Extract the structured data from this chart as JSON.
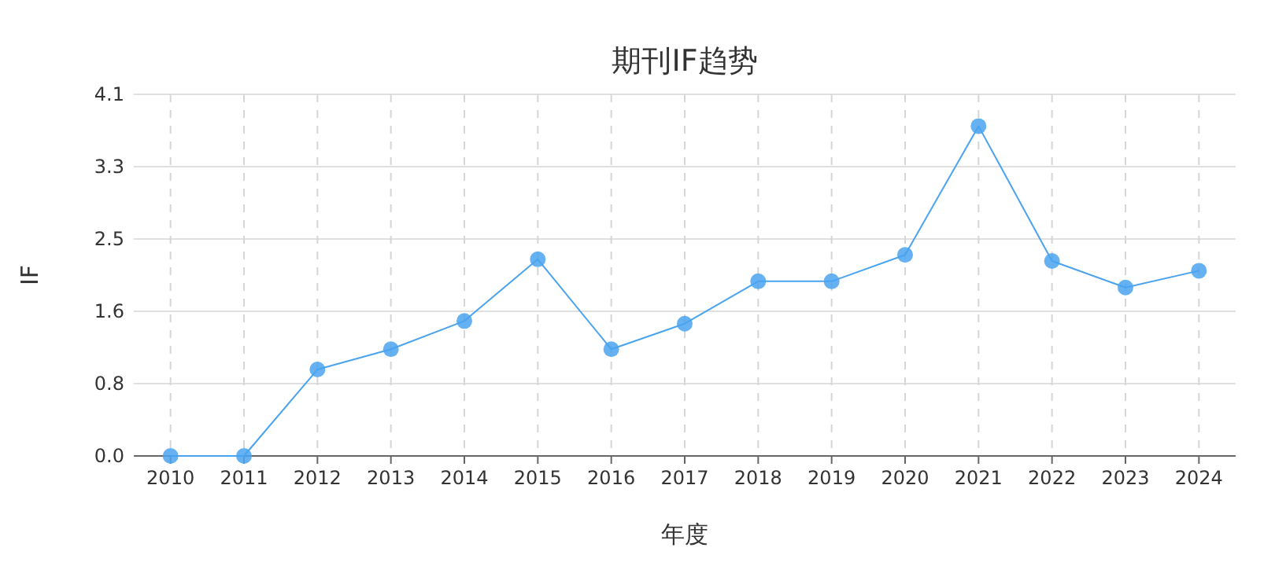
{
  "chart_data": {
    "type": "line",
    "title": "期刊IF趋势",
    "xlabel": "年度",
    "ylabel": "IF",
    "categories": [
      "2010",
      "2011",
      "2012",
      "2013",
      "2014",
      "2015",
      "2016",
      "2017",
      "2018",
      "2019",
      "2020",
      "2021",
      "2022",
      "2023",
      "2024"
    ],
    "series": [
      {
        "color": "#4aa3ef",
        "values": [
          0,
          0,
          0.98,
          1.21,
          1.53,
          2.23,
          1.21,
          1.5,
          1.98,
          1.98,
          2.28,
          3.74,
          2.21,
          1.91,
          2.1
        ]
      }
    ],
    "ylim": [
      0,
      4.1
    ],
    "yticks": [
      {
        "value": 0,
        "label": "0.0"
      },
      {
        "value": 0.82,
        "label": "0.8"
      },
      {
        "value": 1.64,
        "label": "1.6"
      },
      {
        "value": 2.46,
        "label": "2.5"
      },
      {
        "value": 3.28,
        "label": "3.3"
      },
      {
        "value": 4.1,
        "label": "4.1"
      }
    ],
    "grid": true,
    "marker": "circle",
    "line_style": "solid"
  }
}
